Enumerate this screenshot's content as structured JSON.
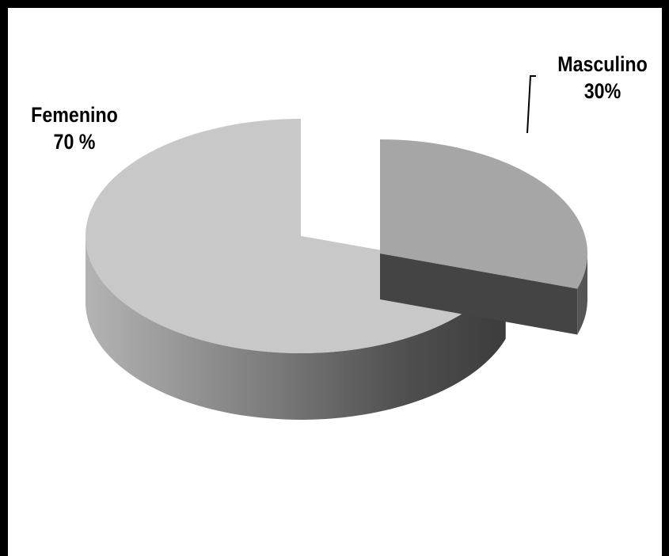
{
  "chart_data": {
    "type": "pie",
    "style": "3d-exploded",
    "slices": [
      {
        "name": "Femenino",
        "value": 70,
        "display": "70 %",
        "color": "#c8c8c8"
      },
      {
        "name": "Masculino",
        "value": 30,
        "display": "30%",
        "color": "#a6a6a6",
        "exploded": true
      }
    ],
    "legend": "none",
    "labels": "outside"
  },
  "colors": {
    "border": "#000000",
    "side_dark": "#444444",
    "side_light": "#a0a0a0"
  }
}
